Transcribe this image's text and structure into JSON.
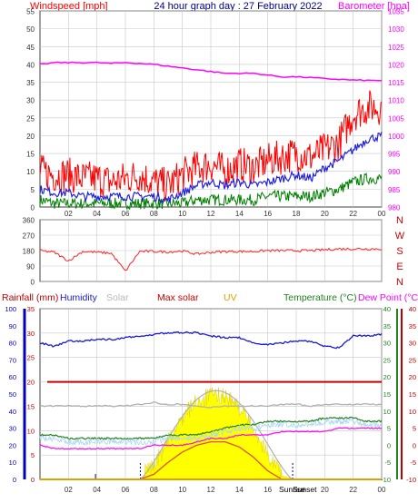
{
  "colors": {
    "wind": "#ff0000",
    "wind_avg": "#2020e0",
    "wind_lull": "#008000",
    "baro": "#ff00ff",
    "dir": "#ff2020",
    "rain": "#0000c0",
    "humidity": "#1a1ad0",
    "solar": "#b0b0b0",
    "maxsolar": "#c80000",
    "uv": "#e0a000",
    "temp": "#208020",
    "dew": "#ff00ff",
    "fill_solar": "#ffff00",
    "axis_text": "#333333",
    "grid": "#c8c8c8"
  },
  "header": {
    "left": "Windspeed [mph]",
    "center": "24 hour graph day : 27 February 2022",
    "right": "Barometer [hpa]"
  },
  "legend2": {
    "rainfall": "Rainfall (mm)",
    "humidity": "Humidity",
    "solar": "Solar",
    "maxsolar": "Max solar",
    "uv": "UV",
    "temperature": "Temperature (°C)",
    "dewpoint": "Dew Point (°C)"
  },
  "x_ticks": [
    "02",
    "04",
    "06",
    "08",
    "10",
    "12",
    "14",
    "16",
    "18",
    "20",
    "22",
    "00"
  ],
  "sun_labels": {
    "rise": "Sunrise",
    "set": "Sunset"
  },
  "chart_data": [
    {
      "type": "line",
      "title": "24 hour graph day : 27 February 2022",
      "xlabel": "",
      "ylabel": "Windspeed [mph]",
      "y2label": "Barometer [hpa]",
      "x": [
        0,
        1,
        2,
        3,
        4,
        5,
        6,
        7,
        8,
        9,
        10,
        11,
        12,
        13,
        14,
        15,
        16,
        17,
        18,
        19,
        20,
        21,
        22,
        23,
        24
      ],
      "ylim": [
        0,
        55
      ],
      "y_ticks": [
        "0",
        "5",
        "10",
        "15",
        "20",
        "25",
        "30",
        "35",
        "40",
        "45",
        "50",
        "55"
      ],
      "y2lim": [
        980,
        1035
      ],
      "y2_ticks": [
        "980",
        "985",
        "990",
        "995",
        "1000",
        "1005",
        "1010",
        "1015",
        "1020",
        "1025",
        "1030",
        "1035"
      ],
      "series": [
        {
          "name": "Windspeed [mph]",
          "axis": "left",
          "values": [
            10,
            9,
            9,
            8,
            8,
            7,
            8,
            9,
            7,
            6,
            9,
            11,
            12,
            10,
            12,
            11,
            13,
            14,
            15,
            14,
            16,
            18,
            26,
            28,
            28
          ]
        },
        {
          "name": "",
          "axis": "left",
          "values": [
            5,
            4,
            4,
            3,
            3,
            3,
            3,
            3,
            3,
            2,
            4,
            6,
            7,
            6,
            7,
            6,
            7,
            8,
            9,
            8,
            11,
            13,
            16,
            19,
            20
          ]
        },
        {
          "name": "",
          "axis": "left",
          "values": [
            2,
            1,
            1,
            1,
            1,
            1,
            1,
            1,
            1,
            1,
            1,
            2,
            2,
            2,
            2,
            2,
            3,
            3,
            3,
            3,
            4,
            5,
            7,
            8,
            8
          ]
        },
        {
          "name": "Barometer [hpa]",
          "axis": "right",
          "values": [
            1020,
            1020.5,
            1020.5,
            1020.5,
            1020.5,
            1020.3,
            1020.5,
            1020.3,
            1020,
            1019.5,
            1019,
            1018.5,
            1018,
            1017.5,
            1017.5,
            1017.5,
            1017,
            1016.5,
            1016.5,
            1016.3,
            1016,
            1015.8,
            1015.6,
            1015.5,
            1015.5
          ]
        }
      ]
    },
    {
      "type": "line",
      "title": "",
      "ylabel": "",
      "x": [
        0,
        1,
        2,
        3,
        4,
        5,
        6,
        7,
        8,
        9,
        10,
        11,
        12,
        13,
        14,
        15,
        16,
        17,
        18,
        19,
        20,
        21,
        22,
        23,
        24
      ],
      "ylim": [
        0,
        360
      ],
      "y_ticks": [
        "0",
        "90",
        "180",
        "270",
        "360"
      ],
      "direction_labels": [
        "N",
        "W",
        "S",
        "E",
        "N"
      ],
      "series": [
        {
          "name": "",
          "values": [
            180,
            170,
            120,
            175,
            170,
            165,
            60,
            175,
            175,
            172,
            178,
            160,
            170,
            175,
            175,
            175,
            180,
            180,
            180,
            180,
            185,
            190,
            190,
            190,
            190
          ]
        }
      ]
    },
    {
      "type": "line",
      "title": "",
      "x": [
        0,
        1,
        2,
        3,
        4,
        5,
        6,
        7,
        8,
        9,
        10,
        11,
        12,
        13,
        14,
        15,
        16,
        17,
        18,
        19,
        20,
        21,
        22,
        23,
        24
      ],
      "rain_axis": {
        "ylim": [
          0,
          35
        ],
        "ticks": [
          "0",
          "5",
          "10",
          "15",
          "20",
          "25",
          "30",
          "35"
        ]
      },
      "humidity_axis": {
        "ylim": [
          0,
          100
        ],
        "ticks": [
          "0",
          "10",
          "20",
          "30",
          "40",
          "50",
          "60",
          "70",
          "80",
          "90",
          "100"
        ]
      },
      "temp_axis": {
        "ylim": [
          -10,
          40
        ],
        "ticks": [
          "-10",
          "-5",
          "0",
          "5",
          "10",
          "15",
          "20",
          "25",
          "30",
          "35",
          "40"
        ]
      },
      "sunrise": 7.05,
      "sunset": 17.75,
      "series": [
        {
          "name": "Humidity",
          "axis": "humidity",
          "values": [
            80,
            78,
            81,
            81,
            82,
            82,
            83,
            84,
            85,
            86,
            86,
            86,
            84,
            83,
            83,
            80,
            79,
            80,
            81,
            81,
            78,
            77,
            84,
            84,
            85
          ]
        },
        {
          "name": "Solar",
          "axis": "humidity",
          "values": [
            43,
            43,
            43,
            43,
            43,
            43,
            43,
            44,
            45,
            44,
            44,
            43,
            42,
            43,
            43,
            43,
            43,
            44,
            44,
            43,
            44,
            44,
            44,
            44,
            44
          ]
        },
        {
          "name": "Max solar",
          "axis": "humidity",
          "values": [
            0,
            0,
            0,
            0,
            0,
            0,
            0,
            0,
            3,
            10,
            16,
            20,
            22,
            22,
            19,
            13,
            5,
            0,
            0,
            0,
            0,
            0,
            0,
            0,
            0
          ]
        },
        {
          "name": "",
          "axis": "humidity",
          "values": [
            0,
            0,
            0,
            0,
            0,
            0,
            0,
            0,
            6,
            20,
            34,
            44,
            47,
            47,
            40,
            28,
            12,
            2,
            0,
            0,
            0,
            0,
            0,
            0,
            0
          ]
        },
        {
          "name": "Temperature (°C)",
          "axis": "temp",
          "values": [
            3,
            3,
            2,
            2,
            2,
            2,
            2,
            2,
            2,
            3,
            3,
            3,
            4,
            5,
            6,
            6,
            7,
            7,
            7,
            7,
            8,
            8,
            8,
            7,
            7
          ]
        },
        {
          "name": "Dew Point (°C)",
          "axis": "temp",
          "values": [
            0,
            -1,
            -1,
            -1,
            -1,
            -1,
            -1,
            -1,
            0,
            0,
            0,
            1,
            2,
            2,
            3,
            3,
            3,
            4,
            4,
            4,
            4,
            5,
            5,
            5,
            5
          ]
        },
        {
          "name": "Rainfall (mm)",
          "axis": "rain",
          "values": [
            0,
            0,
            0,
            0,
            0,
            0,
            0,
            0,
            0,
            0,
            0,
            0,
            0,
            0,
            0,
            0,
            0,
            0,
            0,
            0,
            0,
            0,
            0,
            0,
            0
          ]
        }
      ],
      "rain_rate_value": 20
    }
  ]
}
